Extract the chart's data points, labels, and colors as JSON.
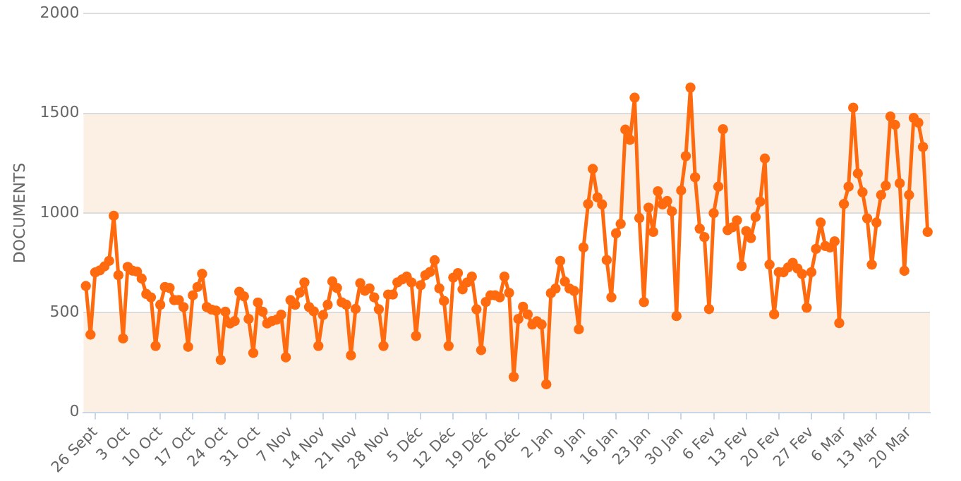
{
  "chart_data": {
    "type": "line",
    "ylabel": "DOCUMENTS",
    "ylim": [
      0,
      2000
    ],
    "yticks": [
      0,
      500,
      1000,
      1500,
      2000
    ],
    "grid": "y",
    "marker": "circle",
    "line_style": "solid",
    "legend": false,
    "categories": [
      null,
      null,
      "26 Sept",
      null,
      null,
      null,
      null,
      null,
      null,
      "3 Oct",
      null,
      null,
      null,
      null,
      null,
      null,
      "10 Oct",
      null,
      null,
      null,
      null,
      null,
      null,
      "17 Oct",
      null,
      null,
      null,
      null,
      null,
      null,
      "24 Oct",
      null,
      null,
      null,
      null,
      null,
      null,
      "31 Oct",
      null,
      null,
      null,
      null,
      null,
      null,
      "7 Nov",
      null,
      null,
      null,
      null,
      null,
      null,
      "14 Nov",
      null,
      null,
      null,
      null,
      null,
      null,
      "21 Nov",
      null,
      null,
      null,
      null,
      null,
      null,
      "28 Nov",
      null,
      null,
      null,
      null,
      null,
      null,
      "5 Déc",
      null,
      null,
      null,
      null,
      null,
      null,
      "12 Déc",
      null,
      null,
      null,
      null,
      null,
      null,
      "19 Déc",
      null,
      null,
      null,
      null,
      null,
      null,
      "26 Déc",
      null,
      null,
      null,
      null,
      null,
      null,
      "2 Jan",
      null,
      null,
      null,
      null,
      null,
      null,
      "9 Jan",
      null,
      null,
      null,
      null,
      null,
      null,
      "16 Jan",
      null,
      null,
      null,
      null,
      null,
      null,
      "23 Jan",
      null,
      null,
      null,
      null,
      null,
      null,
      "30 Jan",
      null,
      null,
      null,
      null,
      null,
      null,
      "6 Fev",
      null,
      null,
      null,
      null,
      null,
      null,
      "13 Fev",
      null,
      null,
      null,
      null,
      null,
      null,
      "20 Fev",
      null,
      null,
      null,
      null,
      null,
      null,
      "27 Fev",
      null,
      null,
      null,
      null,
      null,
      null,
      "6 Mar",
      null,
      null,
      null,
      null,
      null,
      null,
      "13 Mar",
      null,
      null,
      null,
      null,
      null,
      null,
      "20 Mar",
      null,
      null,
      null,
      null
    ],
    "bands": [
      {
        "axis": "y",
        "from": 0,
        "to": 500,
        "color": "#fcf0e5"
      },
      {
        "axis": "y",
        "from": 1000,
        "to": 1500,
        "color": "#fcf0e5"
      }
    ],
    "series": [
      {
        "color": "#ff6a0e",
        "values": [
          634,
          390,
          702,
          712,
          732,
          760,
          986,
          688,
          371,
          730,
          711,
          706,
          671,
          594,
          577,
          333,
          540,
          629,
          624,
          563,
          563,
          528,
          329,
          587,
          629,
          695,
          528,
          516,
          510,
          263,
          505,
          446,
          458,
          605,
          582,
          469,
          298,
          551,
          505,
          446,
          458,
          465,
          490,
          276,
          563,
          540,
          601,
          652,
          528,
          507,
          333,
          488,
          540,
          657,
          624,
          552,
          540,
          286,
          519,
          648,
          610,
          622,
          577,
          517,
          333,
          591,
          591,
          652,
          667,
          681,
          652,
          383,
          638,
          688,
          704,
          763,
          622,
          559,
          333,
          676,
          699,
          617,
          652,
          681,
          517,
          312,
          554,
          587,
          587,
          577,
          681,
          600,
          178,
          469,
          530,
          492,
          441,
          457,
          441,
          141,
          598,
          621,
          760,
          656,
          621,
          609,
          417,
          827,
          1045,
          1221,
          1078,
          1043,
          764,
          577,
          898,
          945,
          1418,
          1367,
          1578,
          975,
          553,
          1027,
          905,
          1109,
          1043,
          1060,
          1008,
          483,
          1113,
          1285,
          1629,
          1179,
          921,
          879,
          518,
          999,
          1132,
          1420,
          914,
          928,
          963,
          734,
          909,
          874,
          980,
          1057,
          1273,
          741,
          492,
          703,
          703,
          727,
          750,
          722,
          694,
          525,
          703,
          820,
          952,
          834,
          827,
          858,
          448,
          1045,
          1132,
          1528,
          1198,
          1104,
          973,
          741,
          952,
          1090,
          1137,
          1484,
          1442,
          1149,
          710,
          1090,
          1477,
          1453,
          1331,
          905
        ]
      }
    ]
  }
}
